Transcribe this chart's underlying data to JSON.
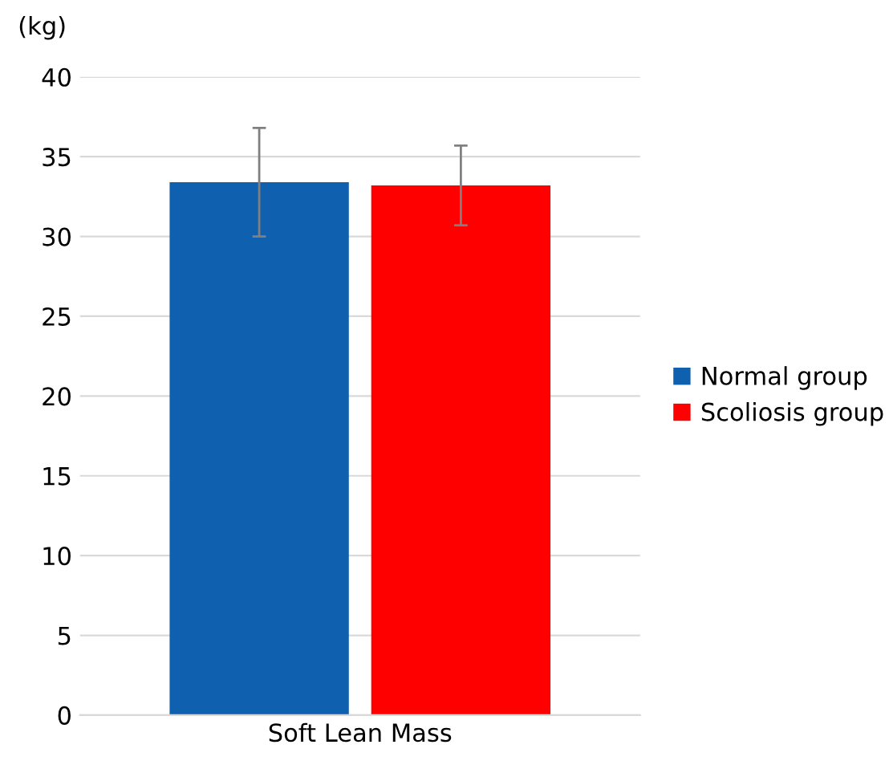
{
  "chart_data": {
    "type": "bar",
    "ylabel": "(kg)",
    "categories": [
      "Soft Lean Mass"
    ],
    "series": [
      {
        "name": "Normal group",
        "color": "#1060b0",
        "values": [
          33.4
        ],
        "errors": [
          3.4
        ]
      },
      {
        "name": "Scoliosis group",
        "color": "#ff0000",
        "values": [
          33.2
        ],
        "errors": [
          2.5
        ]
      }
    ],
    "ylim": [
      0,
      40
    ],
    "yticks": [
      0,
      5,
      10,
      15,
      20,
      25,
      30,
      35,
      40
    ],
    "grid": "y",
    "legend": "right"
  }
}
